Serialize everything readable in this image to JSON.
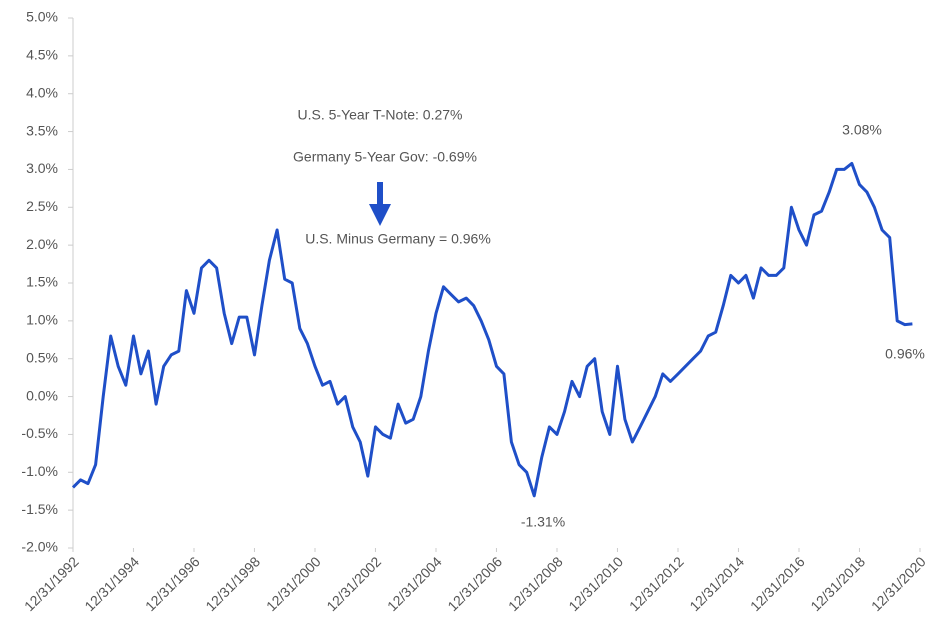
{
  "chart_data": {
    "type": "line",
    "x": [
      "1992-12-31",
      "1993-03-31",
      "1993-06-30",
      "1993-09-30",
      "1993-12-31",
      "1994-03-31",
      "1994-06-30",
      "1994-09-30",
      "1994-12-31",
      "1995-03-31",
      "1995-06-30",
      "1995-09-30",
      "1995-12-31",
      "1996-03-31",
      "1996-06-30",
      "1996-09-30",
      "1996-12-31",
      "1997-03-31",
      "1997-06-30",
      "1997-09-30",
      "1997-12-31",
      "1998-03-31",
      "1998-06-30",
      "1998-09-30",
      "1998-12-31",
      "1999-03-31",
      "1999-06-30",
      "1999-09-30",
      "1999-12-31",
      "2000-03-31",
      "2000-06-30",
      "2000-09-30",
      "2000-12-31",
      "2001-03-31",
      "2001-06-30",
      "2001-09-30",
      "2001-12-31",
      "2002-03-31",
      "2002-06-30",
      "2002-09-30",
      "2002-12-31",
      "2003-03-31",
      "2003-06-30",
      "2003-09-30",
      "2003-12-31",
      "2004-03-31",
      "2004-06-30",
      "2004-09-30",
      "2004-12-31",
      "2005-03-31",
      "2005-06-30",
      "2005-09-30",
      "2005-12-31",
      "2006-03-31",
      "2006-06-30",
      "2006-09-30",
      "2006-12-31",
      "2007-03-31",
      "2007-06-30",
      "2007-09-30",
      "2007-12-31",
      "2008-03-31",
      "2008-06-30",
      "2008-09-30",
      "2008-12-31",
      "2009-03-31",
      "2009-06-30",
      "2009-09-30",
      "2009-12-31",
      "2010-03-31",
      "2010-06-30",
      "2010-09-30",
      "2010-12-31",
      "2011-03-31",
      "2011-06-30",
      "2011-09-30",
      "2011-12-31",
      "2012-03-31",
      "2012-06-30",
      "2012-09-30",
      "2012-12-31",
      "2013-03-31",
      "2013-06-30",
      "2013-09-30",
      "2013-12-31",
      "2014-03-31",
      "2014-06-30",
      "2014-09-30",
      "2014-12-31",
      "2015-03-31",
      "2015-06-30",
      "2015-09-30",
      "2015-12-31",
      "2016-03-31",
      "2016-06-30",
      "2016-09-30",
      "2016-12-31",
      "2017-03-31",
      "2017-06-30",
      "2017-09-30",
      "2017-12-31",
      "2018-03-31",
      "2018-06-30",
      "2018-09-30",
      "2018-12-31",
      "2019-03-31",
      "2019-06-30",
      "2019-09-30",
      "2019-12-31",
      "2020-03-31",
      "2020-06-30",
      "2020-09-30"
    ],
    "series": [
      {
        "color": "#1f4fc8",
        "values": [
          -1.2,
          -1.1,
          -1.15,
          -0.9,
          0.0,
          0.8,
          0.4,
          0.15,
          0.8,
          0.3,
          0.6,
          -0.1,
          0.4,
          0.55,
          0.6,
          1.4,
          1.1,
          1.7,
          1.8,
          1.7,
          1.1,
          0.7,
          1.05,
          1.05,
          0.55,
          1.2,
          1.8,
          2.2,
          1.55,
          1.5,
          0.9,
          0.7,
          0.4,
          0.15,
          0.2,
          -0.1,
          0.0,
          -0.4,
          -0.6,
          -1.05,
          -0.4,
          -0.5,
          -0.55,
          -0.1,
          -0.35,
          -0.3,
          0.0,
          0.6,
          1.1,
          1.45,
          1.35,
          1.25,
          1.3,
          1.2,
          1.0,
          0.75,
          0.4,
          0.3,
          -0.6,
          -0.9,
          -1.0,
          -1.31,
          -0.8,
          -0.4,
          -0.5,
          -0.2,
          0.2,
          0.0,
          0.4,
          0.5,
          -0.2,
          -0.5,
          0.4,
          -0.3,
          -0.6,
          -0.4,
          -0.2,
          0.0,
          0.3,
          0.2,
          0.3,
          0.4,
          0.5,
          0.6,
          0.8,
          0.85,
          1.2,
          1.6,
          1.5,
          1.6,
          1.3,
          1.7,
          1.6,
          1.6,
          1.7,
          2.5,
          2.2,
          2.0,
          2.4,
          2.45,
          2.7,
          3.0,
          3.0,
          3.08,
          2.8,
          2.7,
          2.5,
          2.2,
          2.1,
          1.0,
          0.95,
          0.96
        ]
      }
    ],
    "xlim": [
      "1992-12-31",
      "2020-12-31"
    ],
    "xticks": [
      {
        "value": "1992-12-31",
        "label": "12/31/1992"
      },
      {
        "value": "1994-12-31",
        "label": "12/31/1994"
      },
      {
        "value": "1996-12-31",
        "label": "12/31/1996"
      },
      {
        "value": "1998-12-31",
        "label": "12/31/1998"
      },
      {
        "value": "2000-12-31",
        "label": "12/31/2000"
      },
      {
        "value": "2002-12-31",
        "label": "12/31/2002"
      },
      {
        "value": "2004-12-31",
        "label": "12/31/2004"
      },
      {
        "value": "2006-12-31",
        "label": "12/31/2006"
      },
      {
        "value": "2008-12-31",
        "label": "12/31/2008"
      },
      {
        "value": "2010-12-31",
        "label": "12/31/2010"
      },
      {
        "value": "2012-12-31",
        "label": "12/31/2012"
      },
      {
        "value": "2014-12-31",
        "label": "12/31/2014"
      },
      {
        "value": "2016-12-31",
        "label": "12/31/2016"
      },
      {
        "value": "2018-12-31",
        "label": "12/31/2018"
      },
      {
        "value": "2020-12-31",
        "label": "12/31/2020"
      }
    ],
    "ylim": [
      -2,
      5
    ],
    "yticks": [
      {
        "value": -2,
        "label": "-2.0%"
      },
      {
        "value": -1.5,
        "label": "-1.5%"
      },
      {
        "value": -1,
        "label": "-1.0%"
      },
      {
        "value": -0.5,
        "label": "-0.5%"
      },
      {
        "value": 0,
        "label": "0.0%"
      },
      {
        "value": 0.5,
        "label": "0.5%"
      },
      {
        "value": 1,
        "label": "1.0%"
      },
      {
        "value": 1.5,
        "label": "1.5%"
      },
      {
        "value": 2,
        "label": "2.0%"
      },
      {
        "value": 2.5,
        "label": "2.5%"
      },
      {
        "value": 3,
        "label": "3.0%"
      },
      {
        "value": 3.5,
        "label": "3.5%"
      },
      {
        "value": 4,
        "label": "4.0%"
      },
      {
        "value": 4.5,
        "label": "4.5%"
      },
      {
        "value": 5,
        "label": "5.0%"
      }
    ],
    "annotations": [
      "U.S. 5-Year T-Note: 0.27%",
      "Germany 5-Year Gov: -0.69%",
      "U.S. Minus Germany = 0.96%",
      "3.08%",
      "0.96%",
      "-1.31%"
    ]
  }
}
